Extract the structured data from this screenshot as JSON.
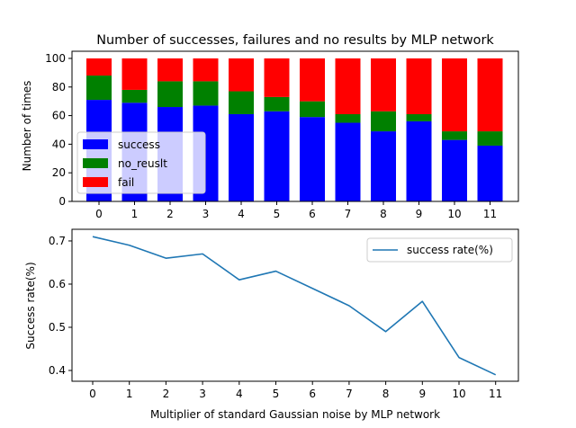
{
  "chart_data": [
    {
      "type": "bar",
      "stacked": true,
      "title": "Number of successes, failures and no results by MLP network",
      "xlabel": "",
      "ylabel": "Number of times",
      "categories": [
        "0",
        "1",
        "2",
        "3",
        "4",
        "5",
        "6",
        "7",
        "8",
        "9",
        "10",
        "11"
      ],
      "ylim": [
        0,
        105
      ],
      "yticks": [
        0,
        20,
        40,
        60,
        80,
        100
      ],
      "series": [
        {
          "name": "success",
          "color": "#0000ff",
          "values": [
            71,
            69,
            66,
            67,
            61,
            63,
            59,
            55,
            49,
            56,
            43,
            39
          ]
        },
        {
          "name": "no_reuslt",
          "color": "#008000",
          "values": [
            17,
            9,
            18,
            17,
            16,
            10,
            11,
            6,
            14,
            5,
            6,
            10
          ]
        },
        {
          "name": "fail",
          "color": "#ff0000",
          "values": [
            12,
            22,
            16,
            16,
            23,
            27,
            30,
            39,
            37,
            39,
            51,
            51
          ]
        }
      ],
      "legend": "lower-left",
      "grid": false
    },
    {
      "type": "line",
      "xlabel": "Multiplier of standard Gaussian noise by MLP network",
      "ylabel": "Success rate(%)",
      "x": [
        0,
        1,
        2,
        3,
        4,
        5,
        6,
        7,
        8,
        9,
        10,
        11
      ],
      "xticks": [
        "0",
        "1",
        "2",
        "3",
        "4",
        "5",
        "6",
        "7",
        "8",
        "9",
        "10",
        "11"
      ],
      "ylim": [
        0.375,
        0.727
      ],
      "yticks": [
        "0.4",
        "0.5",
        "0.6",
        "0.7"
      ],
      "series": [
        {
          "name": "success rate(%)",
          "color": "#1f77b4",
          "values": [
            0.71,
            0.69,
            0.66,
            0.67,
            0.61,
            0.63,
            0.59,
            0.55,
            0.49,
            0.56,
            0.43,
            0.39
          ]
        }
      ],
      "legend": "upper-right",
      "grid": false
    }
  ]
}
